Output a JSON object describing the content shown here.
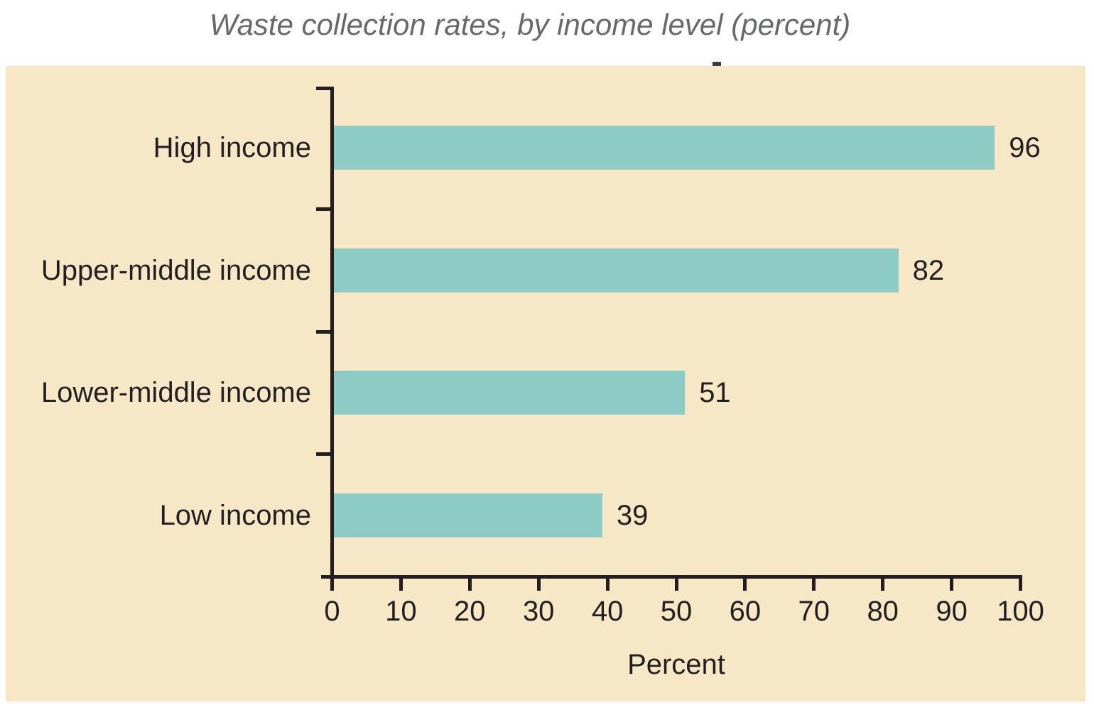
{
  "chart_data": {
    "type": "bar",
    "orientation": "horizontal",
    "title": "Waste collection rates, by income level (percent)",
    "categories": [
      "High income",
      "Upper-middle income",
      "Lower-middle income",
      "Low income"
    ],
    "values": [
      96,
      82,
      51,
      39
    ],
    "value_labels": [
      "96",
      "82",
      "51",
      "39"
    ],
    "xlabel": "Percent",
    "xlim": [
      0,
      100
    ],
    "x_ticks": [
      0,
      10,
      20,
      30,
      40,
      50,
      60,
      70,
      80,
      90,
      100
    ],
    "grid": false,
    "legend": false,
    "colors": {
      "page_background": "#ffffff",
      "panel_background": "#f6e8c6",
      "bar_fill": "#8ecbc5",
      "axis_ink": "#231f20",
      "label_ink": "#231f20",
      "title_gray": "#68696b"
    }
  }
}
